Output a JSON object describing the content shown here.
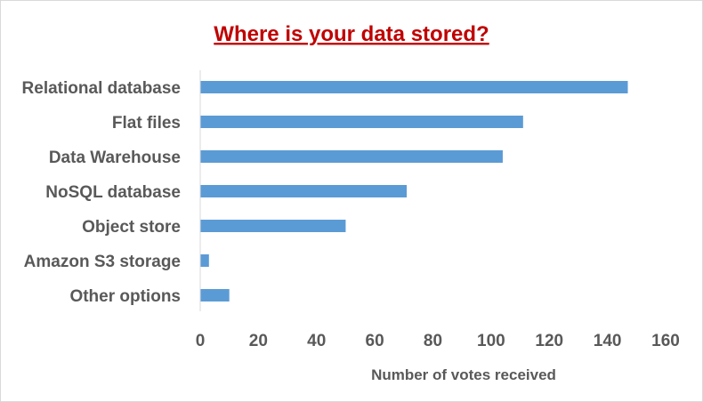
{
  "chart_data": {
    "type": "bar",
    "orientation": "horizontal",
    "title": "Where is your data stored?",
    "xlabel": "Number of votes received",
    "ylabel": "",
    "categories": [
      "Relational database",
      "Flat files",
      "Data Warehouse",
      "NoSQL database",
      "Object store",
      "Amazon S3 storage",
      "Other options"
    ],
    "values": [
      147,
      111,
      104,
      71,
      50,
      3,
      10
    ],
    "xlim": [
      0,
      160
    ],
    "xticks": [
      "0",
      "20",
      "40",
      "60",
      "80",
      "100",
      "120",
      "140",
      "160"
    ],
    "grid": false,
    "legend": "none",
    "colors": {
      "bar": "#5b9bd5",
      "title": "#c00000",
      "axis_line": "#d9d9d9",
      "text": "#595959"
    }
  }
}
